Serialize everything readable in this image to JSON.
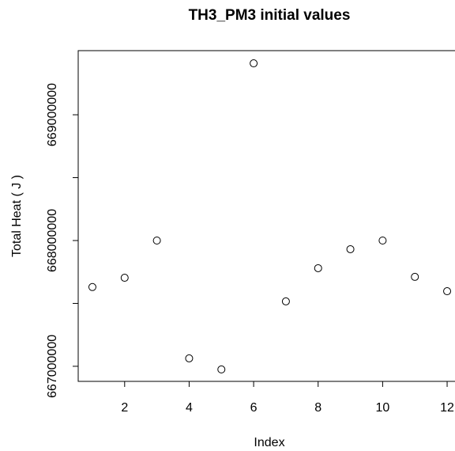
{
  "chart_data": {
    "type": "scatter",
    "title": "TH3_PM3 initial values",
    "xlabel": "Index",
    "ylabel": "Total Heat ( J )",
    "x": [
      1,
      2,
      3,
      4,
      5,
      6,
      7,
      8,
      9,
      10,
      11,
      12
    ],
    "values": [
      667630000,
      667704000,
      668000000,
      667063000,
      666975000,
      669409000,
      667516000,
      667780000,
      667931000,
      668000000,
      667711000,
      667597000
    ],
    "color": "#000000",
    "xlim": [
      0.56,
      12.44
    ],
    "xticks": [
      2,
      4,
      6,
      8,
      10,
      12
    ],
    "ylim": [
      666880000,
      669510000
    ],
    "yticks": [
      667000000,
      {
        "value": 667500000,
        "label": null
      },
      668000000,
      {
        "value": 668500000,
        "label": null
      },
      669000000
    ]
  }
}
